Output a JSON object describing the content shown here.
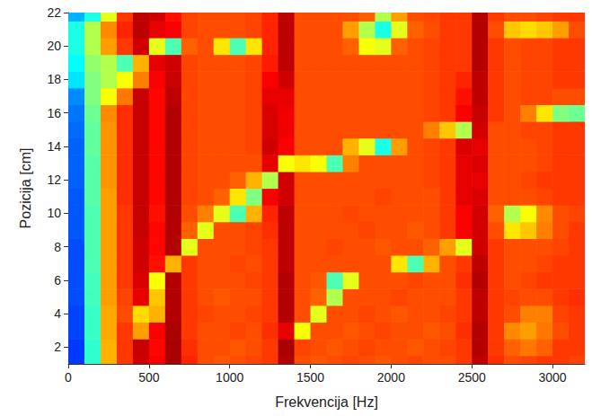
{
  "chart_data": {
    "type": "heatmap",
    "xlabel": "Frekvencija [Hz]",
    "ylabel": "Pozicija [cm]",
    "x": [
      50,
      150,
      250,
      350,
      450,
      550,
      650,
      750,
      850,
      950,
      1050,
      1150,
      1250,
      1350,
      1450,
      1550,
      1650,
      1750,
      1850,
      1950,
      2050,
      2150,
      2250,
      2350,
      2450,
      2550,
      2650,
      2750,
      2850,
      2950,
      3050,
      3150
    ],
    "y": [
      1,
      2,
      3,
      4,
      5,
      6,
      7,
      8,
      9,
      10,
      11,
      12,
      13,
      14,
      15,
      16,
      17,
      18,
      19,
      20,
      21,
      22
    ],
    "values": [
      [
        18,
        42,
        70,
        82,
        92,
        88,
        96,
        84,
        80,
        79,
        80,
        81,
        82,
        95,
        80,
        79,
        80,
        81,
        80,
        79,
        80,
        81,
        80,
        80,
        82,
        94,
        83,
        80,
        81,
        82,
        82,
        81
      ],
      [
        18,
        42,
        70,
        82,
        93,
        87,
        96,
        83,
        80,
        80,
        79,
        80,
        82,
        96,
        81,
        80,
        79,
        80,
        81,
        80,
        80,
        79,
        80,
        81,
        82,
        95,
        82,
        78,
        76,
        78,
        82,
        82
      ],
      [
        19,
        43,
        71,
        82,
        72,
        88,
        96,
        82,
        80,
        80,
        81,
        80,
        83,
        90,
        62,
        80,
        80,
        79,
        80,
        81,
        80,
        80,
        79,
        80,
        83,
        95,
        82,
        74,
        72,
        76,
        80,
        82
      ],
      [
        19,
        43,
        71,
        80,
        66,
        70,
        95,
        82,
        81,
        80,
        80,
        81,
        82,
        95,
        80,
        60,
        80,
        80,
        81,
        80,
        79,
        80,
        80,
        81,
        82,
        94,
        82,
        80,
        75,
        75,
        81,
        82
      ],
      [
        20,
        44,
        72,
        81,
        90,
        68,
        95,
        82,
        80,
        79,
        80,
        80,
        82,
        95,
        80,
        78,
        55,
        80,
        80,
        80,
        81,
        80,
        80,
        80,
        82,
        94,
        82,
        81,
        80,
        80,
        82,
        83
      ],
      [
        20,
        44,
        72,
        82,
        91,
        62,
        95,
        82,
        80,
        80,
        80,
        81,
        82,
        95,
        80,
        79,
        45,
        60,
        80,
        80,
        80,
        81,
        80,
        80,
        83,
        95,
        82,
        80,
        81,
        82,
        82,
        82
      ],
      [
        20,
        45,
        72,
        82,
        92,
        86,
        70,
        82,
        80,
        80,
        81,
        80,
        82,
        94,
        80,
        80,
        80,
        80,
        80,
        80,
        65,
        45,
        70,
        80,
        82,
        94,
        82,
        80,
        80,
        81,
        82,
        82
      ],
      [
        20,
        45,
        72,
        82,
        92,
        87,
        95,
        60,
        80,
        80,
        80,
        81,
        82,
        94,
        80,
        80,
        81,
        80,
        80,
        79,
        80,
        80,
        78,
        72,
        60,
        92,
        82,
        80,
        80,
        80,
        81,
        82
      ],
      [
        21,
        45,
        72,
        82,
        93,
        87,
        95,
        78,
        60,
        80,
        80,
        81,
        83,
        94,
        80,
        80,
        80,
        80,
        81,
        80,
        80,
        79,
        80,
        82,
        88,
        92,
        80,
        65,
        68,
        75,
        80,
        82
      ],
      [
        21,
        45,
        72,
        82,
        93,
        86,
        95,
        80,
        75,
        60,
        45,
        70,
        84,
        94,
        80,
        80,
        80,
        81,
        80,
        80,
        80,
        80,
        80,
        82,
        88,
        92,
        78,
        55,
        62,
        74,
        80,
        81
      ],
      [
        21,
        46,
        72,
        83,
        93,
        87,
        95,
        81,
        80,
        78,
        65,
        50,
        88,
        92,
        80,
        80,
        80,
        80,
        80,
        81,
        80,
        80,
        80,
        82,
        90,
        91,
        80,
        80,
        80,
        81,
        82,
        82
      ],
      [
        22,
        46,
        73,
        83,
        93,
        87,
        95,
        81,
        80,
        80,
        78,
        70,
        55,
        92,
        80,
        80,
        80,
        80,
        80,
        80,
        80,
        80,
        81,
        82,
        90,
        90,
        80,
        80,
        81,
        82,
        82,
        82
      ],
      [
        22,
        46,
        73,
        83,
        93,
        87,
        95,
        81,
        80,
        80,
        80,
        80,
        90,
        62,
        65,
        62,
        45,
        75,
        80,
        80,
        80,
        80,
        81,
        82,
        90,
        91,
        80,
        80,
        80,
        81,
        82,
        82
      ],
      [
        22,
        47,
        73,
        83,
        93,
        87,
        95,
        81,
        80,
        80,
        80,
        81,
        92,
        88,
        80,
        80,
        80,
        70,
        60,
        40,
        72,
        80,
        81,
        82,
        91,
        90,
        80,
        80,
        80,
        81,
        82,
        82
      ],
      [
        23,
        47,
        73,
        83,
        93,
        87,
        95,
        81,
        80,
        80,
        80,
        81,
        91,
        89,
        80,
        80,
        80,
        80,
        80,
        80,
        80,
        80,
        75,
        68,
        55,
        92,
        80,
        80,
        81,
        81,
        82,
        82
      ],
      [
        24,
        48,
        74,
        83,
        93,
        87,
        95,
        81,
        80,
        80,
        80,
        81,
        91,
        89,
        80,
        80,
        80,
        80,
        80,
        80,
        80,
        80,
        81,
        82,
        88,
        93,
        82,
        80,
        75,
        65,
        50,
        48
      ],
      [
        26,
        50,
        62,
        76,
        93,
        87,
        94,
        81,
        80,
        80,
        80,
        81,
        90,
        90,
        80,
        80,
        80,
        80,
        80,
        80,
        80,
        80,
        81,
        82,
        86,
        94,
        82,
        80,
        81,
        81,
        80,
        80
      ],
      [
        35,
        50,
        55,
        62,
        75,
        88,
        93,
        81,
        80,
        80,
        80,
        81,
        88,
        92,
        80,
        80,
        80,
        80,
        80,
        80,
        80,
        80,
        81,
        82,
        84,
        94,
        82,
        80,
        81,
        81,
        82,
        82
      ],
      [
        38,
        52,
        55,
        45,
        70,
        90,
        92,
        81,
        80,
        80,
        80,
        81,
        85,
        94,
        80,
        80,
        80,
        80,
        80,
        80,
        80,
        80,
        81,
        82,
        82,
        95,
        82,
        80,
        81,
        81,
        82,
        82
      ],
      [
        40,
        55,
        72,
        82,
        92,
        60,
        45,
        78,
        80,
        65,
        45,
        65,
        84,
        94,
        80,
        80,
        80,
        78,
        62,
        60,
        78,
        80,
        81,
        82,
        82,
        95,
        82,
        80,
        81,
        81,
        82,
        82
      ],
      [
        40,
        55,
        74,
        84,
        94,
        90,
        88,
        81,
        80,
        80,
        80,
        81,
        84,
        94,
        80,
        80,
        80,
        72,
        55,
        40,
        60,
        78,
        80,
        82,
        82,
        95,
        80,
        68,
        66,
        68,
        72,
        80
      ],
      [
        30,
        40,
        60,
        82,
        94,
        92,
        86,
        81,
        80,
        80,
        80,
        81,
        84,
        94,
        80,
        80,
        80,
        80,
        78,
        55,
        72,
        80,
        81,
        82,
        82,
        95,
        82,
        80,
        80,
        81,
        82,
        82
      ]
    ],
    "xlim": [
      0,
      3200
    ],
    "xticks": [
      0,
      500,
      1000,
      1500,
      2000,
      2500,
      3000
    ],
    "ylim": [
      1,
      22
    ],
    "yticks": [
      2,
      4,
      6,
      8,
      10,
      12,
      14,
      16,
      18,
      20,
      22
    ],
    "zlim": [
      0,
      100
    ]
  }
}
